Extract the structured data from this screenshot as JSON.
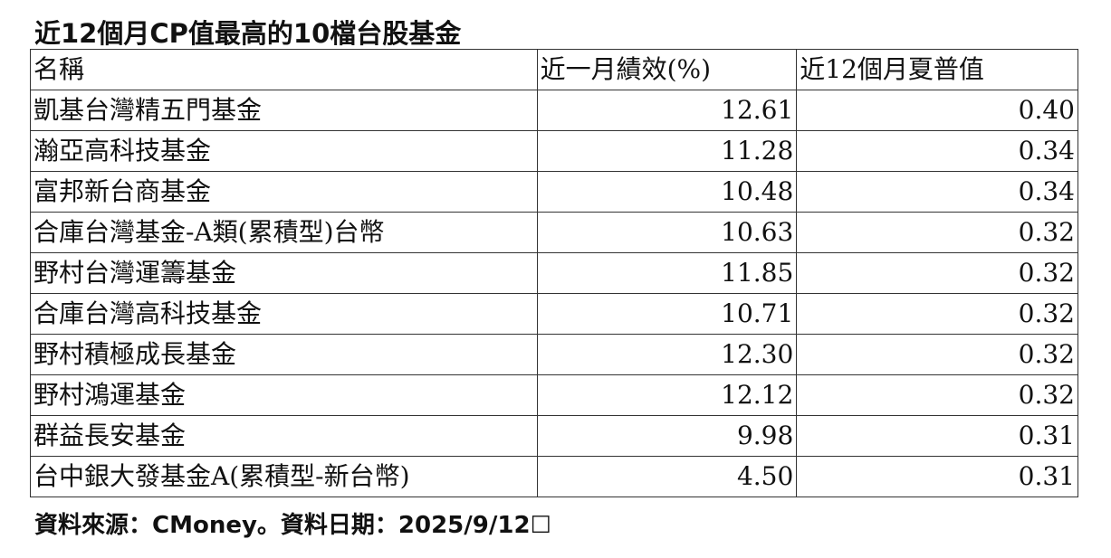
{
  "title": "近12個月CP值最高的10檔台股基金",
  "table": {
    "headers": [
      "名稱",
      "近一月績效(%)",
      "近12個月夏普值"
    ],
    "rows": [
      {
        "name": "凱基台灣精五門基金",
        "return_1m": "12.61",
        "sharpe_12m": "0.40"
      },
      {
        "name": "瀚亞高科技基金",
        "return_1m": "11.28",
        "sharpe_12m": "0.34"
      },
      {
        "name": "富邦新台商基金",
        "return_1m": "10.48",
        "sharpe_12m": "0.34"
      },
      {
        "name": "合庫台灣基金-A類(累積型)台幣",
        "return_1m": "10.63",
        "sharpe_12m": "0.32"
      },
      {
        "name": "野村台灣運籌基金",
        "return_1m": "11.85",
        "sharpe_12m": "0.32"
      },
      {
        "name": "合庫台灣高科技基金",
        "return_1m": "10.71",
        "sharpe_12m": "0.32"
      },
      {
        "name": "野村積極成長基金",
        "return_1m": "12.30",
        "sharpe_12m": "0.32"
      },
      {
        "name": "野村鴻運基金",
        "return_1m": "12.12",
        "sharpe_12m": "0.32"
      },
      {
        "name": "群益長安基金",
        "return_1m": "9.98",
        "sharpe_12m": "0.31"
      },
      {
        "name": "台中銀大發基金A(累積型-新台幣)",
        "return_1m": "4.50",
        "sharpe_12m": "0.31"
      }
    ]
  },
  "footer": "資料來源：CMoney。資料日期：2025/9/12☐"
}
